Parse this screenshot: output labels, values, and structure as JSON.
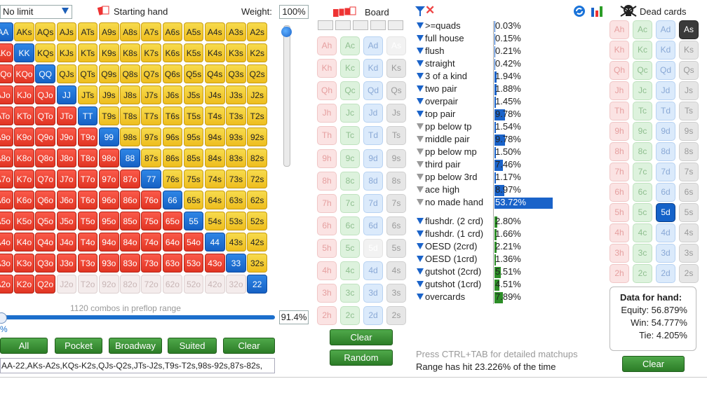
{
  "top": {
    "limit": "No limit",
    "starting_hand": "Starting hand",
    "weight_label": "Weight:",
    "weight": "100%"
  },
  "range_grid": [
    [
      "AA",
      "AKs",
      "AQs",
      "AJs",
      "ATs",
      "A9s",
      "A8s",
      "A7s",
      "A6s",
      "A5s",
      "A4s",
      "A3s",
      "A2s"
    ],
    [
      "AKo",
      "KK",
      "KQs",
      "KJs",
      "KTs",
      "K9s",
      "K8s",
      "K7s",
      "K6s",
      "K5s",
      "K4s",
      "K3s",
      "K2s"
    ],
    [
      "AQo",
      "KQo",
      "QQ",
      "QJs",
      "QTs",
      "Q9s",
      "Q8s",
      "Q7s",
      "Q6s",
      "Q5s",
      "Q4s",
      "Q3s",
      "Q2s"
    ],
    [
      "AJo",
      "KJo",
      "QJo",
      "JJ",
      "JTs",
      "J9s",
      "J8s",
      "J7s",
      "J6s",
      "J5s",
      "J4s",
      "J3s",
      "J2s"
    ],
    [
      "ATo",
      "KTo",
      "QTo",
      "JTo",
      "TT",
      "T9s",
      "T8s",
      "T7s",
      "T6s",
      "T5s",
      "T4s",
      "T3s",
      "T2s"
    ],
    [
      "A9o",
      "K9o",
      "Q9o",
      "J9o",
      "T9o",
      "99",
      "98s",
      "97s",
      "96s",
      "95s",
      "94s",
      "93s",
      "92s"
    ],
    [
      "A8o",
      "K8o",
      "Q8o",
      "J8o",
      "T8o",
      "98o",
      "88",
      "87s",
      "86s",
      "85s",
      "84s",
      "83s",
      "82s"
    ],
    [
      "A7o",
      "K7o",
      "Q7o",
      "J7o",
      "T7o",
      "97o",
      "87o",
      "77",
      "76s",
      "75s",
      "74s",
      "73s",
      "72s"
    ],
    [
      "A6o",
      "K6o",
      "Q6o",
      "J6o",
      "T6o",
      "96o",
      "86o",
      "76o",
      "66",
      "65s",
      "64s",
      "63s",
      "62s"
    ],
    [
      "A5o",
      "K5o",
      "Q5o",
      "J5o",
      "T5o",
      "95o",
      "85o",
      "75o",
      "65o",
      "55",
      "54s",
      "53s",
      "52s"
    ],
    [
      "A4o",
      "K4o",
      "Q4o",
      "J4o",
      "T4o",
      "94o",
      "84o",
      "74o",
      "64o",
      "54o",
      "44",
      "43s",
      "42s"
    ],
    [
      "A3o",
      "K3o",
      "Q3o",
      "J3o",
      "T3o",
      "93o",
      "83o",
      "73o",
      "63o",
      "53o",
      "43o",
      "33",
      "32s"
    ],
    [
      "A2o",
      "K2o",
      "Q2o",
      "J2o",
      "T2o",
      "92o",
      "82o",
      "72o",
      "62o",
      "52o",
      "42o",
      "32o",
      "22"
    ]
  ],
  "excluded_cells": [
    "J2o",
    "T2o",
    "92o",
    "82o",
    "72o",
    "62o",
    "52o",
    "42o",
    "32o"
  ],
  "combos_text": "1120 combos in preflop range",
  "range_pct": "91.4%",
  "small_pct": "%",
  "buttons": {
    "all": "All",
    "pocket": "Pocket",
    "broadway": "Broadway",
    "suited": "Suited",
    "clear": "Clear"
  },
  "range_text": "AA-22,AKs-A2s,KQs-K2s,QJs-Q2s,JTs-J2s,T9s-T2s,98s-92s,87s-82s,",
  "board": {
    "label": "Board",
    "ranks": [
      "A",
      "K",
      "Q",
      "J",
      "T",
      "9",
      "8",
      "7",
      "6",
      "5",
      "4",
      "3",
      "2"
    ],
    "disabled": [
      "As",
      "5d"
    ],
    "clear": "Clear",
    "random": "Random"
  },
  "made_hands": [
    {
      "label": ">=quads",
      "value": "0.03%",
      "pct": 0.03,
      "active": true
    },
    {
      "label": "full house",
      "value": "0.15%",
      "pct": 0.15,
      "active": true
    },
    {
      "label": "flush",
      "value": "0.21%",
      "pct": 0.21,
      "active": true
    },
    {
      "label": "straight",
      "value": "0.42%",
      "pct": 0.42,
      "active": true
    },
    {
      "label": "3 of a kind",
      "value": "1.94%",
      "pct": 1.94,
      "active": true
    },
    {
      "label": "two pair",
      "value": "1.88%",
      "pct": 1.88,
      "active": true
    },
    {
      "label": "overpair",
      "value": "1.45%",
      "pct": 1.45,
      "active": true
    },
    {
      "label": "top pair",
      "value": "9.78%",
      "pct": 9.78,
      "active": true
    },
    {
      "label": "pp below tp",
      "value": "1.54%",
      "pct": 1.54,
      "active": false
    },
    {
      "label": "middle pair",
      "value": "9.78%",
      "pct": 9.78,
      "active": false
    },
    {
      "label": "pp below mp",
      "value": "1.50%",
      "pct": 1.5,
      "active": false
    },
    {
      "label": "third pair",
      "value": "7.46%",
      "pct": 7.46,
      "active": false
    },
    {
      "label": "pp below 3rd",
      "value": "1.17%",
      "pct": 1.17,
      "active": false
    },
    {
      "label": "ace high",
      "value": "8.97%",
      "pct": 8.97,
      "active": false
    },
    {
      "label": "no made hand",
      "value": "53.72%",
      "pct": 53.72,
      "active": false
    }
  ],
  "draws": [
    {
      "label": "flushdr. (2 crd)",
      "value": "2.80%",
      "pct": 2.8,
      "active": true
    },
    {
      "label": "flushdr. (1 crd)",
      "value": "1.66%",
      "pct": 1.66,
      "active": true
    },
    {
      "label": "OESD (2crd)",
      "value": "2.21%",
      "pct": 2.21,
      "active": true
    },
    {
      "label": "OESD (1crd)",
      "value": "1.36%",
      "pct": 1.36,
      "active": true
    },
    {
      "label": "gutshot (2crd)",
      "value": "5.51%",
      "pct": 5.51,
      "active": true
    },
    {
      "label": "gutshot (1crd)",
      "value": "4.51%",
      "pct": 4.51,
      "active": true
    },
    {
      "label": "overcards",
      "value": "7.89%",
      "pct": 7.89,
      "active": true
    }
  ],
  "help_text": "Press CTRL+TAB for detailed matchups",
  "hit_text": "Range has hit 23.226% of the time",
  "dead": {
    "label": "Dead cards",
    "selected": [
      "As",
      "5d"
    ],
    "clear": "Clear"
  },
  "hand_data": {
    "heading": "Data for hand:",
    "equity": "Equity: 56.879%",
    "win": "Win: 54.777%",
    "tie": "Tie: 4.205%"
  },
  "colors": {
    "accent": "#1a63c9",
    "pair": "#1661c4",
    "suited": "#eebd1e",
    "offsuit": "#e13523",
    "green": "#2c7d27"
  }
}
